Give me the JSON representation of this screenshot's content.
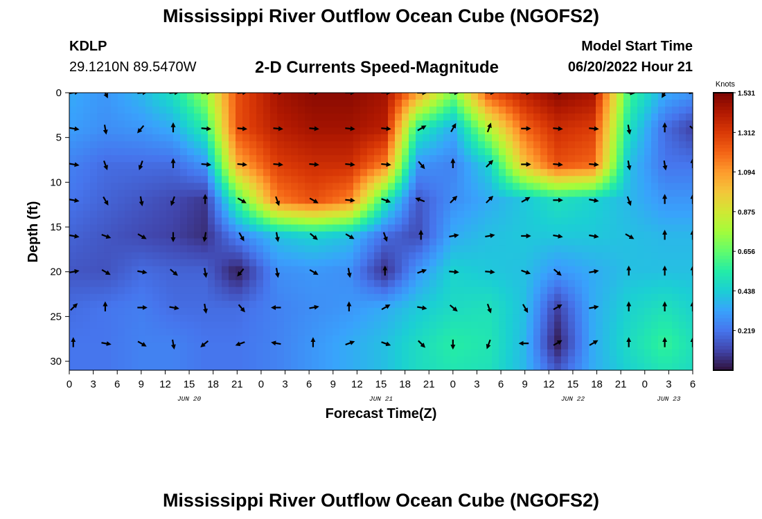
{
  "page": {
    "title": "Mississippi River Outflow Ocean Cube (NGOFS2)",
    "station_id": "KDLP",
    "station_coords": "29.1210N  89.5470W",
    "subtitle": "2-D Currents Speed-Magnitude",
    "model_start_label": "Model Start Time",
    "model_start_value": "06/20/2022 Hour 21",
    "footer_title": "Mississippi River Outflow Ocean Cube (NGOFS2)"
  },
  "colors": {
    "colormap": [
      "#30123b",
      "#4145ab",
      "#4675ed",
      "#39a2fc",
      "#1bcfd4",
      "#24eca6",
      "#61fc6c",
      "#a4fc3b",
      "#d1e834",
      "#f3c63a",
      "#fe9b2d",
      "#f36315",
      "#d93806",
      "#b11901",
      "#7a0402"
    ]
  },
  "chart_data": {
    "type": "heatmap",
    "xlabel": "Forecast Time(Z)",
    "ylabel": "Depth (ft)",
    "colorbar_label": "Knots",
    "x_tick_labels": [
      "0",
      "3",
      "6",
      "9",
      "12",
      "15",
      "18",
      "21",
      "0",
      "3",
      "6",
      "9",
      "12",
      "15",
      "18",
      "21",
      "0",
      "3",
      "6",
      "9",
      "12",
      "15",
      "18",
      "21",
      "0",
      "3",
      "6"
    ],
    "date_labels": [
      "JUN 20",
      "JUN 21",
      "JUN 22",
      "JUN 23"
    ],
    "y_tick_labels": [
      "0",
      "5",
      "10",
      "15",
      "20",
      "25",
      "30"
    ],
    "xlim_hours": [
      0,
      78
    ],
    "ylim_ft": [
      0,
      31
    ],
    "colorbar_ticks": [
      "1.531",
      "1.312",
      "1.094",
      "0.875",
      "0.656",
      "0.438",
      "0.219"
    ],
    "colorbar_range": [
      0,
      1.531
    ],
    "times_hours": [
      0,
      4.5,
      9,
      13,
      17,
      21,
      26,
      30.5,
      35,
      39.5,
      43.5,
      48,
      52.5,
      57,
      61,
      65.5,
      70,
      74.5,
      78
    ],
    "depths_ft": [
      0,
      4,
      8,
      12,
      16,
      20,
      24,
      28,
      31
    ],
    "speed_knots": [
      [
        0.35,
        0.3,
        0.38,
        0.5,
        0.75,
        1.25,
        1.45,
        1.5,
        1.5,
        1.45,
        1.1,
        0.7,
        1.25,
        1.4,
        1.5,
        1.45,
        0.6,
        0.35,
        0.3
      ],
      [
        0.32,
        0.28,
        0.3,
        0.35,
        0.55,
        1.25,
        1.4,
        1.45,
        1.45,
        1.4,
        0.55,
        0.35,
        0.8,
        1.2,
        1.35,
        1.3,
        0.5,
        0.2,
        0.1
      ],
      [
        0.25,
        0.2,
        0.2,
        0.2,
        0.3,
        1.05,
        1.3,
        1.35,
        1.35,
        1.15,
        0.3,
        0.25,
        0.45,
        1.0,
        1.25,
        1.2,
        0.4,
        0.22,
        0.22
      ],
      [
        0.22,
        0.18,
        0.15,
        0.12,
        0.08,
        0.6,
        1.15,
        1.25,
        1.15,
        0.55,
        0.15,
        0.28,
        0.35,
        0.42,
        0.5,
        0.45,
        0.38,
        0.3,
        0.3
      ],
      [
        0.18,
        0.15,
        0.12,
        0.1,
        0.06,
        0.25,
        0.4,
        0.45,
        0.4,
        0.2,
        0.12,
        0.35,
        0.4,
        0.42,
        0.42,
        0.42,
        0.4,
        0.38,
        0.38
      ],
      [
        0.15,
        0.14,
        0.2,
        0.18,
        0.18,
        0.02,
        0.28,
        0.3,
        0.28,
        0.06,
        0.3,
        0.45,
        0.42,
        0.4,
        0.3,
        0.35,
        0.4,
        0.4,
        0.4
      ],
      [
        0.2,
        0.22,
        0.24,
        0.2,
        0.2,
        0.2,
        0.25,
        0.28,
        0.3,
        0.35,
        0.42,
        0.48,
        0.5,
        0.4,
        0.1,
        0.35,
        0.45,
        0.5,
        0.45
      ],
      [
        0.22,
        0.22,
        0.25,
        0.25,
        0.22,
        0.22,
        0.25,
        0.3,
        0.35,
        0.4,
        0.48,
        0.55,
        0.52,
        0.38,
        0.02,
        0.35,
        0.48,
        0.58,
        0.5
      ],
      [
        0.22,
        0.22,
        0.25,
        0.25,
        0.22,
        0.22,
        0.25,
        0.3,
        0.35,
        0.4,
        0.48,
        0.52,
        0.5,
        0.38,
        0.15,
        0.35,
        0.45,
        0.52,
        0.48
      ]
    ],
    "vector_times_hours": [
      0.5,
      4.5,
      9,
      13,
      17,
      21.5,
      26,
      30.5,
      35,
      39.5,
      44,
      48,
      52.5,
      57,
      61,
      65.5,
      70,
      74.5,
      78
    ],
    "vector_depths_ft": [
      0,
      4,
      8,
      12,
      16,
      20,
      24,
      28
    ],
    "vector_direction_deg": [
      [
        80,
        155,
        85,
        85,
        85,
        85,
        85,
        85,
        90,
        90,
        90,
        90,
        90,
        90,
        90,
        95,
        95,
        210,
        80
      ],
      [
        100,
        170,
        220,
        0,
        95,
        95,
        95,
        95,
        95,
        95,
        60,
        30,
        20,
        90,
        95,
        95,
        170,
        0,
        130
      ],
      [
        100,
        160,
        200,
        0,
        95,
        95,
        95,
        95,
        95,
        95,
        140,
        0,
        45,
        90,
        95,
        95,
        170,
        170,
        0
      ],
      [
        100,
        150,
        170,
        200,
        0,
        120,
        160,
        120,
        95,
        110,
        290,
        45,
        45,
        60,
        90,
        100,
        160,
        0,
        0
      ],
      [
        100,
        110,
        120,
        180,
        190,
        150,
        170,
        130,
        120,
        160,
        0,
        80,
        80,
        90,
        100,
        100,
        120,
        0,
        0
      ],
      [
        80,
        120,
        100,
        130,
        170,
        220,
        170,
        120,
        170,
        0,
        70,
        95,
        95,
        110,
        130,
        80,
        0,
        0,
        0
      ],
      [
        45,
        0,
        90,
        100,
        170,
        140,
        270,
        80,
        0,
        60,
        100,
        130,
        160,
        150,
        60,
        80,
        0,
        0,
        0
      ],
      [
        0,
        100,
        120,
        170,
        230,
        250,
        280,
        0,
        70,
        110,
        135,
        180,
        200,
        270,
        60,
        60,
        0,
        0,
        0
      ]
    ]
  }
}
